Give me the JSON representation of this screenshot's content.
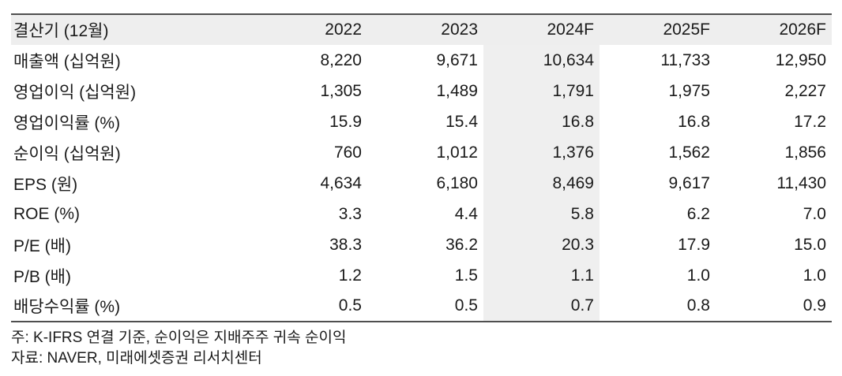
{
  "table": {
    "header": {
      "label": "결산기 (12월)",
      "years": [
        "2022",
        "2023",
        "2024F",
        "2025F",
        "2026F"
      ]
    },
    "highlight_col": 2,
    "rows": [
      {
        "label": "매출액 (십억원)",
        "values": [
          "8,220",
          "9,671",
          "10,634",
          "11,733",
          "12,950"
        ]
      },
      {
        "label": "영업이익 (십억원)",
        "values": [
          "1,305",
          "1,489",
          "1,791",
          "1,975",
          "2,227"
        ]
      },
      {
        "label": "영업이익률 (%)",
        "values": [
          "15.9",
          "15.4",
          "16.8",
          "16.8",
          "17.2"
        ]
      },
      {
        "label": "순이익 (십억원)",
        "values": [
          "760",
          "1,012",
          "1,376",
          "1,562",
          "1,856"
        ]
      },
      {
        "label": "EPS (원)",
        "values": [
          "4,634",
          "6,180",
          "8,469",
          "9,617",
          "11,430"
        ]
      },
      {
        "label": "ROE (%)",
        "values": [
          "3.3",
          "4.4",
          "5.8",
          "6.2",
          "7.0"
        ]
      },
      {
        "label": "P/E (배)",
        "values": [
          "38.3",
          "36.2",
          "20.3",
          "17.9",
          "15.0"
        ]
      },
      {
        "label": "P/B (배)",
        "values": [
          "1.2",
          "1.5",
          "1.1",
          "1.0",
          "1.0"
        ]
      },
      {
        "label": "배당수익률 (%)",
        "values": [
          "0.5",
          "0.5",
          "0.7",
          "0.8",
          "0.9"
        ]
      }
    ]
  },
  "footnotes": {
    "note": "주: K-IFRS 연결 기준, 순이익은 지배주주 귀속 순이익",
    "source": "자료: NAVER, 미래에셋증권 리서치센터"
  },
  "colors": {
    "header_bg": "#eeeeee",
    "highlight_bg": "#efefef",
    "border": "#4f4f4f",
    "text": "#1a1a1a"
  }
}
